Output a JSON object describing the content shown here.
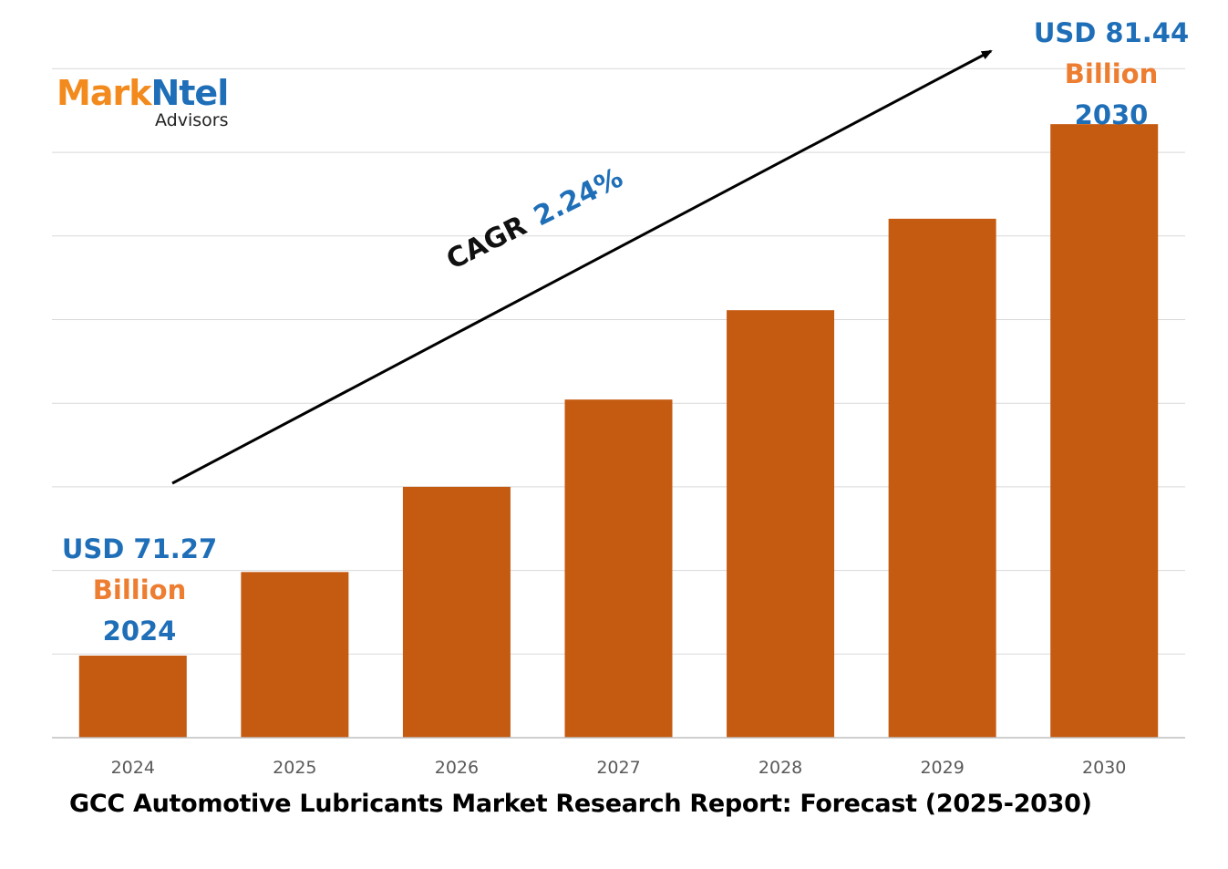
{
  "logo": {
    "brand_part1": "Mark",
    "brand_part2": "Ntel",
    "tagline": "Advisors"
  },
  "callouts": {
    "start": {
      "amount": "USD 71.27",
      "unit": "Billion",
      "year": "2024"
    },
    "end": {
      "amount": "USD 81.44",
      "unit": "Billion",
      "year": "2030"
    }
  },
  "cagr": {
    "label": "CAGR",
    "value": "2.24%"
  },
  "report_title": "GCC Automotive Lubricants Market Research Report: Forecast (2025-2030)",
  "colors": {
    "bar": "#c55a11",
    "accent_blue": "#1f6fb8",
    "accent_orange": "#ed7d31",
    "gridline": "#d9d9d9"
  },
  "chart_data": {
    "type": "bar",
    "categories": [
      "2024",
      "2025",
      "2026",
      "2027",
      "2028",
      "2029",
      "2030"
    ],
    "values": [
      71.27,
      72.87,
      74.5,
      76.17,
      77.88,
      79.63,
      81.44
    ],
    "title": "",
    "xlabel": "",
    "ylabel": "",
    "grid": true,
    "legend": "none"
  }
}
